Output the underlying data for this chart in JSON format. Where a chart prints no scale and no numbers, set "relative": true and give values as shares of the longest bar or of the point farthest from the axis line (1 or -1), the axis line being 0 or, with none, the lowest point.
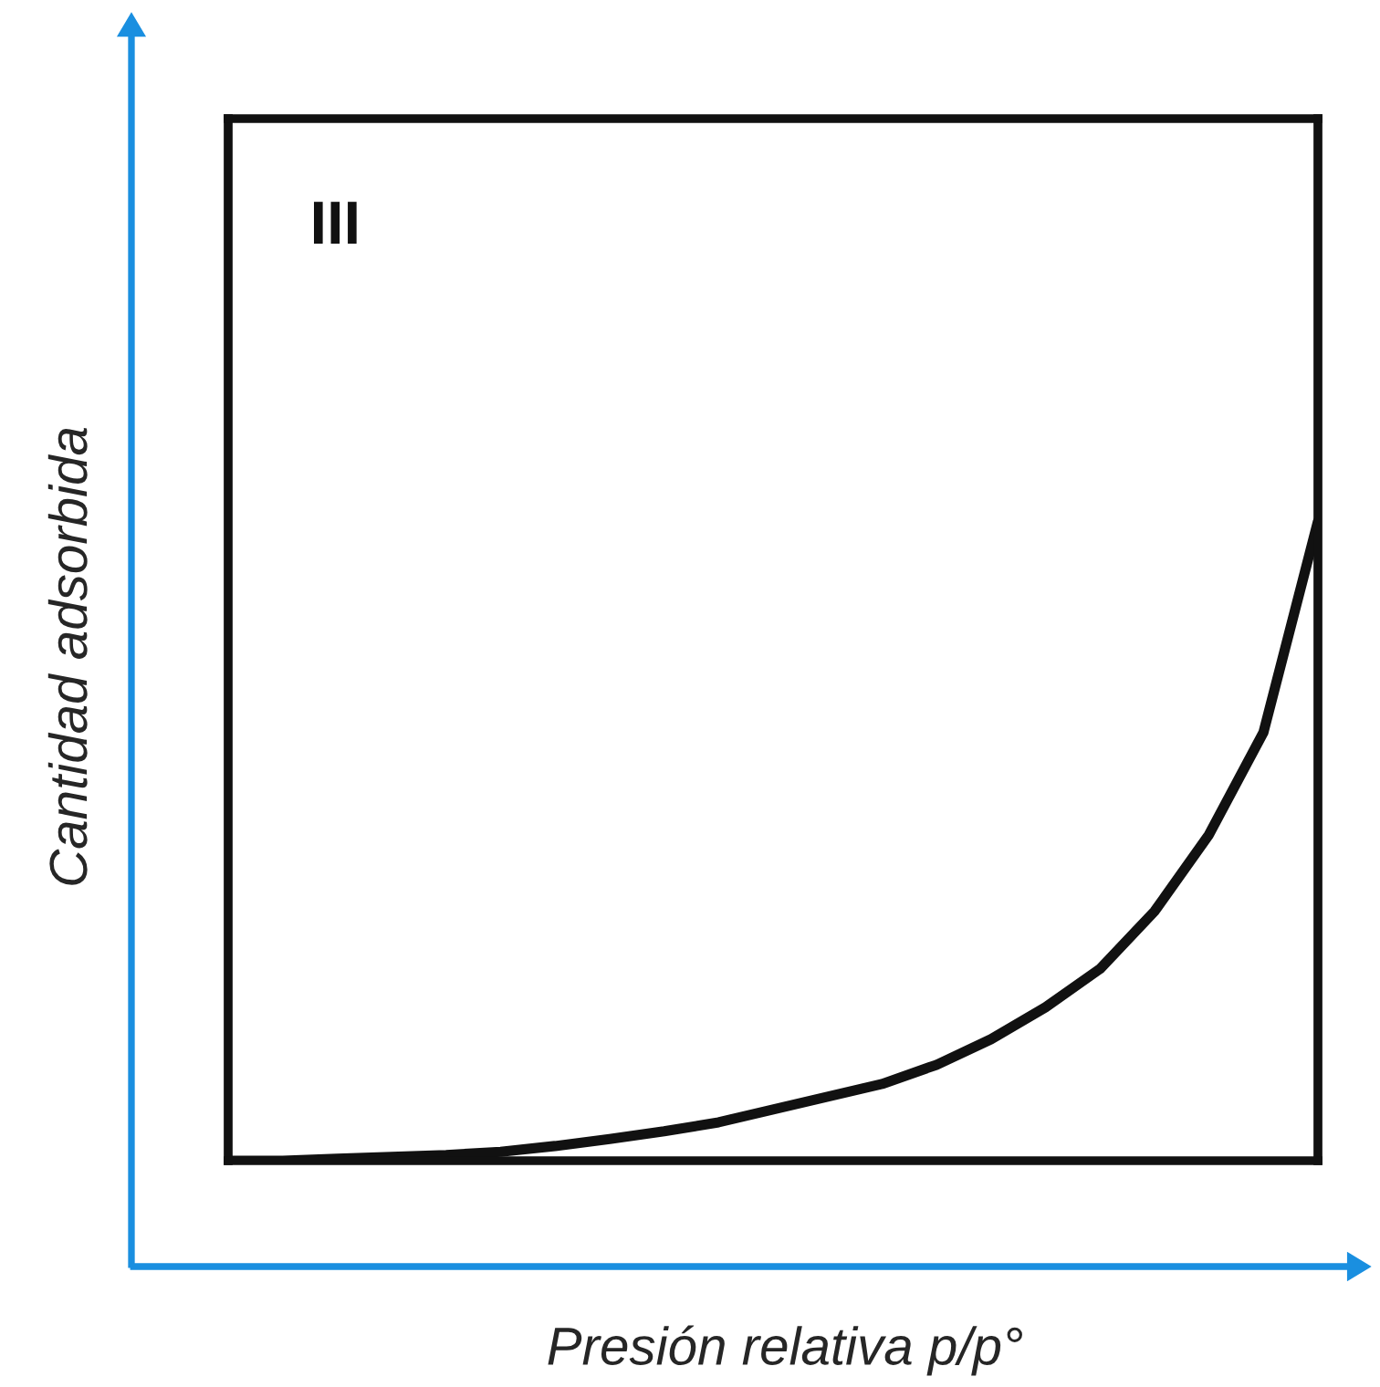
{
  "chart_data": {
    "type": "line",
    "relative": true,
    "xlabel": "Presión relativa p/p°",
    "ylabel": "Cantidad adsorbida",
    "annotations": [
      "III"
    ],
    "categories": [
      null,
      null,
      null,
      null,
      null,
      null,
      null,
      null,
      null,
      null,
      null,
      null,
      null,
      null,
      null,
      null,
      null,
      null,
      null,
      null,
      null
    ],
    "series": [
      {
        "color": "#111111",
        "values": [
          0,
          0,
          0.003,
          0.006,
          0.009,
          0.014,
          0.023,
          0.034,
          0.046,
          0.06,
          0.08,
          0.1,
          0.12,
          0.15,
          0.19,
          0.24,
          0.3,
          0.39,
          0.51,
          0.67,
          1.0
        ]
      }
    ],
    "grid": false,
    "legend": false,
    "marker": "none",
    "line_style": "solid"
  }
}
